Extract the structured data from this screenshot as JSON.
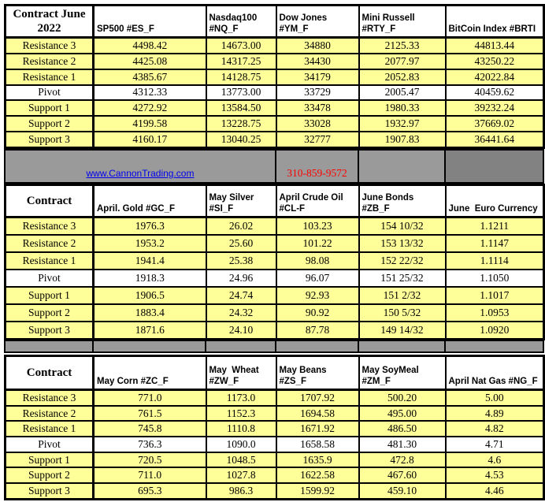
{
  "colors": {
    "row_yellow": "#ffff99",
    "band_gray": "#9a9a9a",
    "band_gray_dark": "#828282",
    "link_blue": "#0000ee",
    "phone_red": "#ff0000",
    "border_black": "#000000"
  },
  "banner": {
    "link_text": "www.CannonTrading.com",
    "phone": "310-859-9572"
  },
  "row_labels": [
    "Resistance 3",
    "Resistance 2",
    "Resistance 1",
    "Pivot",
    "Support 1",
    "Support 2",
    "Support 3"
  ],
  "tables": [
    {
      "corner": "Contract June 2022",
      "columns": [
        "SP500 #ES_F",
        "Nasdaq100\n#NQ_F",
        "Dow Jones\n#YM_F",
        "Mini Russell\n#RTY_F",
        "BitCoin Index #BRTI"
      ],
      "rows": [
        {
          "label": "Resistance 3",
          "values": [
            "4498.42",
            "14673.00",
            "34880",
            "2125.33",
            "44813.44"
          ]
        },
        {
          "label": "Resistance 2",
          "values": [
            "4425.08",
            "14317.25",
            "34430",
            "2077.97",
            "43250.22"
          ]
        },
        {
          "label": "Resistance 1",
          "values": [
            "4385.67",
            "14128.75",
            "34179",
            "2052.83",
            "42022.84"
          ]
        },
        {
          "label": "Pivot",
          "values": [
            "4312.33",
            "13773.00",
            "33729",
            "2005.47",
            "40459.62"
          ]
        },
        {
          "label": "Support 1",
          "values": [
            "4272.92",
            "13584.50",
            "33478",
            "1980.33",
            "39232.24"
          ]
        },
        {
          "label": "Support 2",
          "values": [
            "4199.58",
            "13228.75",
            "33028",
            "1932.97",
            "37669.02"
          ]
        },
        {
          "label": "Support 3",
          "values": [
            "4160.17",
            "13040.25",
            "32777",
            "1907.83",
            "36441.64"
          ]
        }
      ]
    },
    {
      "corner": "Contract",
      "columns": [
        "April. Gold #GC_F",
        "May Silver\n#SI_F",
        "April Crude Oil\n#CL-F",
        "June Bonds\n#ZB_F",
        "June  Euro Currency"
      ],
      "rows": [
        {
          "label": "Resistance 3",
          "values": [
            "1976.3",
            "26.02",
            "103.23",
            "154 10/32",
            "1.1211"
          ]
        },
        {
          "label": "Resistance 2",
          "values": [
            "1953.2",
            "25.60",
            "101.22",
            "153 13/32",
            "1.1147"
          ]
        },
        {
          "label": "Resistance 1",
          "values": [
            "1941.4",
            "25.38",
            "98.08",
            "152 22/32",
            "1.1114"
          ]
        },
        {
          "label": "Pivot",
          "values": [
            "1918.3",
            "24.96",
            "96.07",
            "151 25/32",
            "1.1050"
          ]
        },
        {
          "label": "Support 1",
          "values": [
            "1906.5",
            "24.74",
            "92.93",
            "151  2/32",
            "1.1017"
          ]
        },
        {
          "label": "Support 2",
          "values": [
            "1883.4",
            "24.32",
            "90.92",
            "150  5/32",
            "1.0953"
          ]
        },
        {
          "label": "Support 3",
          "values": [
            "1871.6",
            "24.10",
            "87.78",
            "149 14/32",
            "1.0920"
          ]
        }
      ]
    },
    {
      "corner": "Contract",
      "columns": [
        "May Corn #ZC_F",
        "May  Wheat\n#ZW_F",
        "May Beans #ZS_F",
        "May SoyMeal\n#ZM_F",
        "April Nat Gas #NG_F"
      ],
      "rows": [
        {
          "label": "Resistance 3",
          "values": [
            "771.0",
            "1173.0",
            "1707.92",
            "500.20",
            "5.00"
          ]
        },
        {
          "label": "Resistance 2",
          "values": [
            "761.5",
            "1152.3",
            "1694.58",
            "495.00",
            "4.89"
          ]
        },
        {
          "label": "Resistance 1",
          "values": [
            "745.8",
            "1110.8",
            "1671.92",
            "486.50",
            "4.82"
          ]
        },
        {
          "label": "Pivot",
          "values": [
            "736.3",
            "1090.0",
            "1658.58",
            "481.30",
            "4.71"
          ]
        },
        {
          "label": "Support 1",
          "values": [
            "720.5",
            "1048.5",
            "1635.9",
            "472.8",
            "4.6"
          ]
        },
        {
          "label": "Support 2",
          "values": [
            "711.0",
            "1027.8",
            "1622.58",
            "467.60",
            "4.53"
          ]
        },
        {
          "label": "Support 3",
          "values": [
            "695.3",
            "986.3",
            "1599.92",
            "459.10",
            "4.46"
          ]
        }
      ]
    }
  ]
}
